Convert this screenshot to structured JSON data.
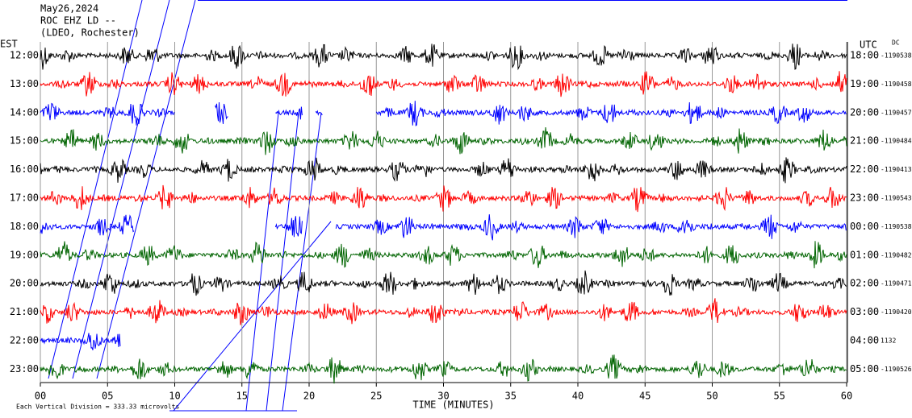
{
  "chart_data": {
    "type": "helicorder",
    "title": "May26,2024",
    "subtitle": "ROC EHZ LD --",
    "station": "(LDEO, Rochester)",
    "left_label": "EST",
    "right_label": "UTC",
    "dc_label": "DC",
    "x_label": "TIME (MINUTES)",
    "scale_note": "Each Vertical Division =  333.33 microvolts",
    "xlim": [
      0,
      60
    ],
    "xticks": [
      {
        "value": 0,
        "label": "00"
      },
      {
        "value": 5,
        "label": "05"
      },
      10,
      15,
      20,
      25,
      30,
      35,
      40,
      45,
      50,
      55,
      60
    ],
    "grid": true,
    "rows": [
      {
        "est": "12:00",
        "utc": "18:00",
        "dc": "-1190538",
        "color": "#000000",
        "spans": [
          [
            0,
            60
          ]
        ]
      },
      {
        "est": "13:00",
        "utc": "19:00",
        "dc": "-1190458",
        "color": "#ff0000",
        "spans": [
          [
            0,
            60
          ]
        ]
      },
      {
        "est": "14:00",
        "utc": "20:00",
        "dc": "-1190457",
        "color": "#0000ff",
        "spans": [
          [
            0,
            10
          ],
          [
            13,
            14
          ],
          [
            17.5,
            19.5
          ],
          [
            20.5,
            21
          ],
          [
            25,
            60
          ]
        ]
      },
      {
        "est": "15:00",
        "utc": "21:00",
        "dc": "-1190484",
        "color": "#006400",
        "spans": [
          [
            0,
            60
          ]
        ]
      },
      {
        "est": "16:00",
        "utc": "22:00",
        "dc": "-1190413",
        "color": "#000000",
        "spans": [
          [
            0,
            60
          ]
        ]
      },
      {
        "est": "17:00",
        "utc": "23:00",
        "dc": "-1190543",
        "color": "#ff0000",
        "spans": [
          [
            0,
            60
          ]
        ]
      },
      {
        "est": "18:00",
        "utc": "00:00",
        "dc": "-1190538",
        "color": "#0000ff",
        "spans": [
          [
            0,
            7
          ],
          [
            17.5,
            19.5
          ],
          [
            22,
            60
          ]
        ]
      },
      {
        "est": "19:00",
        "utc": "01:00",
        "dc": "-1190482",
        "color": "#006400",
        "spans": [
          [
            0,
            60
          ]
        ]
      },
      {
        "est": "20:00",
        "utc": "02:00",
        "dc": "-1190471",
        "color": "#000000",
        "spans": [
          [
            0,
            60
          ]
        ]
      },
      {
        "est": "21:00",
        "utc": "03:00",
        "dc": "-1190420",
        "color": "#ff0000",
        "spans": [
          [
            0,
            60
          ]
        ]
      },
      {
        "est": "22:00",
        "utc": "04:00",
        "dc": "1132",
        "color": "#0000ff",
        "spans": [
          [
            0,
            6
          ]
        ]
      },
      {
        "est": "23:00",
        "utc": "05:00",
        "dc": "-1190526",
        "color": "#006400",
        "spans": [
          [
            0,
            60
          ]
        ]
      }
    ]
  }
}
